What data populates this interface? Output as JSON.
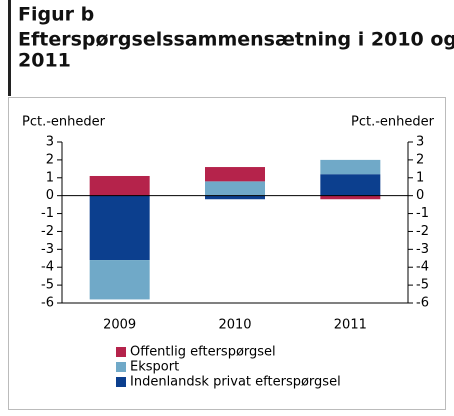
{
  "chart_data": {
    "type": "stacked_bar",
    "heading": "Figur b",
    "title": [
      "Efterspørgselssammensætning i 2010 og",
      "2011"
    ],
    "ylabel": "Pct.-enheder",
    "y2label": "Pct.-enheder",
    "categories": [
      "2009",
      "2010",
      "2011"
    ],
    "series": [
      {
        "name": "Offentlig efterspørgsel",
        "color": "#b5234b",
        "values": [
          1.1,
          0.8,
          -0.2
        ]
      },
      {
        "name": "Eksport",
        "color": "#70a9c8",
        "values": [
          -2.2,
          0.8,
          0.8
        ]
      },
      {
        "name": "Indenlandsk privat efterspørgsel",
        "color": "#0c3f8e",
        "values": [
          -3.6,
          -0.2,
          1.2
        ]
      }
    ],
    "stack_order": [
      2,
      1,
      0
    ],
    "ylim": [
      -6,
      3
    ],
    "yticks": [
      -6,
      -5,
      -4,
      -3,
      -2,
      -1,
      0,
      1,
      2,
      3
    ],
    "y2lim": [
      -6,
      3
    ],
    "y2ticks": [
      -6,
      -5,
      -4,
      -3,
      -2,
      -1,
      0,
      1,
      2,
      3
    ]
  }
}
